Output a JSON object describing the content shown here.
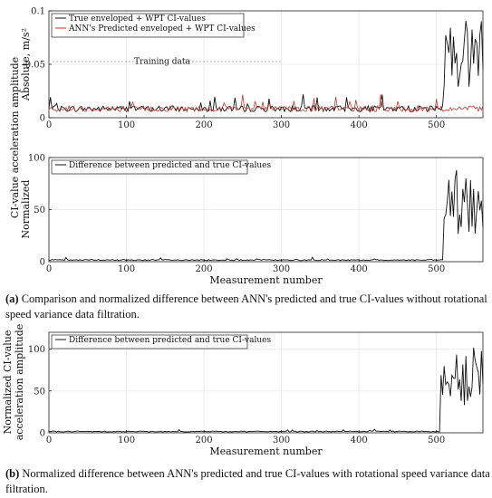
{
  "chart_data": [
    {
      "type": "line",
      "panel": "a-top",
      "ylabel": "Absolute, m/s²",
      "xlim": [
        0,
        560
      ],
      "ylim": [
        0,
        0.1
      ],
      "xticks": [
        "0",
        "100",
        "200",
        "300",
        "400",
        "500"
      ],
      "yticks": [
        "0",
        "0.05",
        "0.1"
      ],
      "annotation": "Training data",
      "legend_position": "top-left",
      "series": [
        {
          "name": "True enveloped + WPT CI-values",
          "color": "#111111",
          "baseline": 0.008,
          "spike_from": 510,
          "spike_max": 0.095
        },
        {
          "name": "ANN's Predicted enveloped + WPT CI-values",
          "color": "#c0392b",
          "baseline": 0.008,
          "spike_from": 560,
          "spike_max": 0.012
        }
      ]
    },
    {
      "type": "line",
      "panel": "a-bottom",
      "ylabel": "Normalized",
      "xlabel": "Measurement number",
      "xlim": [
        0,
        560
      ],
      "ylim": [
        0,
        100
      ],
      "xticks": [
        "0",
        "100",
        "200",
        "300",
        "400",
        "500"
      ],
      "yticks": [
        "0",
        "50",
        "100"
      ],
      "legend_position": "top-left",
      "series": [
        {
          "name": "Difference between predicted and true CI-values",
          "color": "#111111",
          "baseline": 1.5,
          "spike_from": 510,
          "spike_max": 88
        }
      ]
    },
    {
      "type": "line",
      "panel": "b",
      "ylabel": "Normalized CI-value acceleration amplitude",
      "xlabel": "Measurement number",
      "xlim": [
        0,
        560
      ],
      "ylim": [
        0,
        120
      ],
      "xticks": [
        "0",
        "100",
        "200",
        "300",
        "400",
        "500"
      ],
      "yticks": [
        "0",
        "50",
        "100"
      ],
      "legend_position": "top-left",
      "series": [
        {
          "name": "Difference between predicted and true CI-values",
          "color": "#111111",
          "baseline": 1.5,
          "spike_from": 505,
          "spike_max": 110
        }
      ]
    }
  ],
  "shared_ylabel": "CI-value acceleration amplitude",
  "captions": {
    "a_label": "(a)",
    "a_text": "Comparison and normalized difference between ANN's predicted and true CI-values without rotational speed variance data filtration.",
    "b_label": "(b)",
    "b_text": "Normalized difference between ANN's predicted and true CI-values with rotational speed variance data filtration."
  }
}
